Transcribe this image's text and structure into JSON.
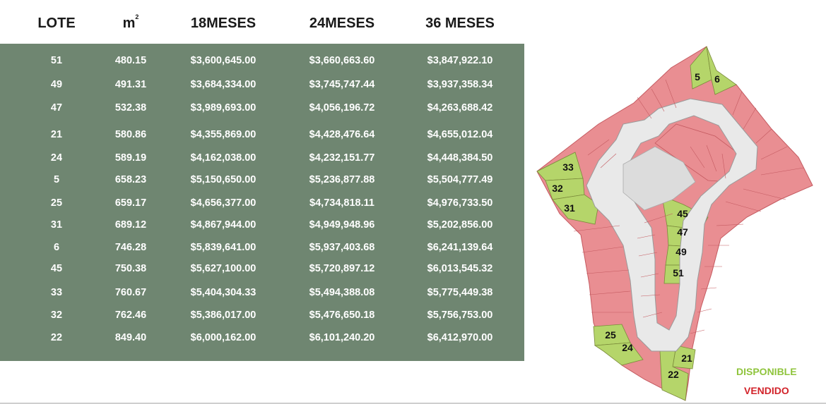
{
  "table": {
    "headers": {
      "lote": "LOTE",
      "m2_base": "m",
      "m2_exp": "2",
      "m18": "18MESES",
      "m24": "24MESES",
      "m36": "36 MESES"
    },
    "rows": [
      {
        "lote": "51",
        "m2": "480.15",
        "m18": "$3,600,645.00",
        "m24": "$3,660,663.60",
        "m36": "$3,847,922.10"
      },
      {
        "lote": "49",
        "m2": "491.31",
        "m18": "$3,684,334.00",
        "m24": "$3,745,747.44",
        "m36": "$3,937,358.34"
      },
      {
        "lote": "47",
        "m2": "532.38",
        "m18": "$3,989,693.00",
        "m24": "$4,056,196.72",
        "m36": "$4,263,688.42"
      },
      {
        "lote": "21",
        "m2": "580.86",
        "m18": "$4,355,869.00",
        "m24": "$4,428,476.64",
        "m36": "$4,655,012.04"
      },
      {
        "lote": "24",
        "m2": "589.19",
        "m18": "$4,162,038.00",
        "m24": "$4,232,151.77",
        "m36": "$4,448,384.50"
      },
      {
        "lote": "5",
        "m2": "658.23",
        "m18": "$5,150,650.00",
        "m24": "$5,236,877.88",
        "m36": "$5,504,777.49"
      },
      {
        "lote": "25",
        "m2": "659.17",
        "m18": "$4,656,377.00",
        "m24": "$4,734,818.11",
        "m36": "$4,976,733.50"
      },
      {
        "lote": "31",
        "m2": "689.12",
        "m18": "$4,867,944.00",
        "m24": "$4,949,948.96",
        "m36": "$5,202,856.00"
      },
      {
        "lote": "6",
        "m2": "746.28",
        "m18": "$5,839,641.00",
        "m24": "$5,937,403.68",
        "m36": "$6,241,139.64"
      },
      {
        "lote": "45",
        "m2": "750.38",
        "m18": "$5,627,100.00",
        "m24": "$5,720,897.12",
        "m36": "$6,013,545.32"
      },
      {
        "lote": "33",
        "m2": "760.67",
        "m18": "$5,404,304.33",
        "m24": "$5,494,388.08",
        "m36": "$5,775,449.38"
      },
      {
        "lote": "32",
        "m2": "762.46",
        "m18": "$5,386,017.00",
        "m24": "$5,476,650.18",
        "m36": "$5,756,753.00"
      },
      {
        "lote": "22",
        "m2": "849.40",
        "m18": "$6,000,162.00",
        "m24": "$6,101,240.20",
        "m36": "$6,412,970.00"
      }
    ]
  },
  "map": {
    "lot_labels": [
      "5",
      "6",
      "33",
      "32",
      "31",
      "45",
      "47",
      "49",
      "51",
      "25",
      "24",
      "21",
      "22"
    ]
  },
  "legend": {
    "available": "DISPONIBLE",
    "sold": "VENDIDO"
  },
  "colors": {
    "table_bg": "#6f8671",
    "available": "#b5d56a",
    "sold": "#e98e92",
    "legend_available": "#8fc43c",
    "legend_sold": "#d2232a"
  }
}
